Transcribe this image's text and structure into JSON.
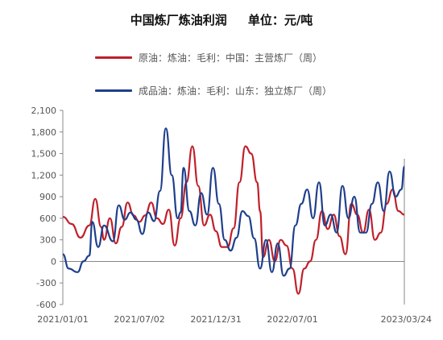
{
  "title": "中国炼厂炼油利润     单位：元/吨",
  "colors": {
    "series_0": "#c0202a",
    "series_1": "#1f3f8c",
    "axis": "#888888"
  },
  "chart_data": {
    "type": "line",
    "title": "中国炼厂炼油利润     单位：元/吨",
    "xlabel": "",
    "ylabel": "",
    "ylim": [
      -600,
      2100
    ],
    "xlim": [
      "2021-01-01",
      "2023-03-24"
    ],
    "yticks": [
      -600,
      -300,
      0,
      300,
      600,
      900,
      1200,
      1500,
      1800,
      2100
    ],
    "ytick_labels": [
      "-600",
      "-300",
      "0",
      "300",
      "600",
      "900",
      "1,200",
      "1,500",
      "1,800",
      "2,100"
    ],
    "xticks": [
      "2021-01-01",
      "2021-07-02",
      "2021-12-31",
      "2022-07-01",
      "2023-03-24"
    ],
    "xtick_labels": [
      "2021/01/01",
      "2021/07/02",
      "2021/12/31",
      "2022/07/01",
      "2023/03/24"
    ],
    "grid": false,
    "legend_position": "top",
    "series": [
      {
        "name": "原油：炼油：毛利：中国：主营炼厂（周）",
        "x": [
          "2021-01-01",
          "2021-01-22",
          "2021-02-12",
          "2021-03-05",
          "2021-03-19",
          "2021-04-02",
          "2021-04-09",
          "2021-04-23",
          "2021-05-07",
          "2021-05-21",
          "2021-06-04",
          "2021-06-18",
          "2021-07-02",
          "2021-07-16",
          "2021-07-30",
          "2021-08-13",
          "2021-08-27",
          "2021-09-10",
          "2021-09-24",
          "2021-10-08",
          "2021-10-22",
          "2021-11-05",
          "2021-11-19",
          "2021-12-03",
          "2021-12-17",
          "2021-12-31",
          "2022-01-14",
          "2022-01-28",
          "2022-02-11",
          "2022-02-25",
          "2022-03-11",
          "2022-03-25",
          "2022-04-08",
          "2022-04-15",
          "2022-04-22",
          "2022-05-06",
          "2022-05-20",
          "2022-06-03",
          "2022-06-17",
          "2022-07-01",
          "2022-07-15",
          "2022-07-29",
          "2022-08-12",
          "2022-08-26",
          "2022-09-09",
          "2022-09-23",
          "2022-10-07",
          "2022-10-21",
          "2022-11-04",
          "2022-11-18",
          "2022-12-02",
          "2022-12-16",
          "2022-12-30",
          "2023-01-13",
          "2023-01-27",
          "2023-02-10",
          "2023-02-24",
          "2023-03-10",
          "2023-03-24"
        ],
        "values": [
          620,
          520,
          330,
          500,
          870,
          480,
          300,
          600,
          250,
          480,
          820,
          640,
          550,
          640,
          820,
          600,
          520,
          720,
          220,
          600,
          1100,
          1600,
          1050,
          500,
          650,
          420,
          200,
          200,
          460,
          1100,
          1600,
          1500,
          1100,
          700,
          60,
          300,
          0,
          300,
          220,
          -100,
          -450,
          -100,
          0,
          300,
          700,
          450,
          650,
          350,
          100,
          800,
          650,
          400,
          720,
          300,
          400,
          800,
          1000,
          700,
          650
        ]
      },
      {
        "name": "成品油：炼油：毛利：山东：独立炼厂（周）",
        "x": [
          "2021-01-01",
          "2021-01-15",
          "2021-02-05",
          "2021-02-19",
          "2021-03-05",
          "2021-03-12",
          "2021-03-26",
          "2021-04-09",
          "2021-04-30",
          "2021-05-14",
          "2021-05-28",
          "2021-06-11",
          "2021-06-25",
          "2021-07-09",
          "2021-07-23",
          "2021-08-06",
          "2021-08-20",
          "2021-09-03",
          "2021-09-17",
          "2021-10-01",
          "2021-10-08",
          "2021-10-15",
          "2021-10-29",
          "2021-11-12",
          "2021-11-26",
          "2021-12-10",
          "2021-12-24",
          "2022-01-07",
          "2022-01-21",
          "2022-02-04",
          "2022-02-18",
          "2022-03-04",
          "2022-03-18",
          "2022-04-01",
          "2022-04-15",
          "2022-04-29",
          "2022-05-13",
          "2022-05-27",
          "2022-06-10",
          "2022-06-24",
          "2022-07-08",
          "2022-07-22",
          "2022-08-05",
          "2022-08-19",
          "2022-09-02",
          "2022-09-16",
          "2022-09-30",
          "2022-10-14",
          "2022-10-28",
          "2022-11-11",
          "2022-11-25",
          "2022-12-09",
          "2022-12-23",
          "2023-01-06",
          "2023-01-20",
          "2023-02-03",
          "2023-02-17",
          "2023-03-03",
          "2023-03-17",
          "2023-03-24"
        ],
        "values": [
          100,
          -100,
          -150,
          0,
          80,
          550,
          200,
          500,
          280,
          780,
          580,
          680,
          580,
          380,
          680,
          560,
          980,
          1850,
          1200,
          600,
          680,
          1300,
          700,
          500,
          950,
          650,
          1300,
          800,
          300,
          150,
          330,
          700,
          630,
          320,
          -100,
          300,
          -150,
          250,
          -200,
          -100,
          500,
          800,
          1000,
          600,
          1100,
          500,
          650,
          400,
          1050,
          600,
          900,
          400,
          400,
          800,
          1100,
          700,
          1250,
          900,
          1000,
          1320
        ]
      }
    ]
  }
}
